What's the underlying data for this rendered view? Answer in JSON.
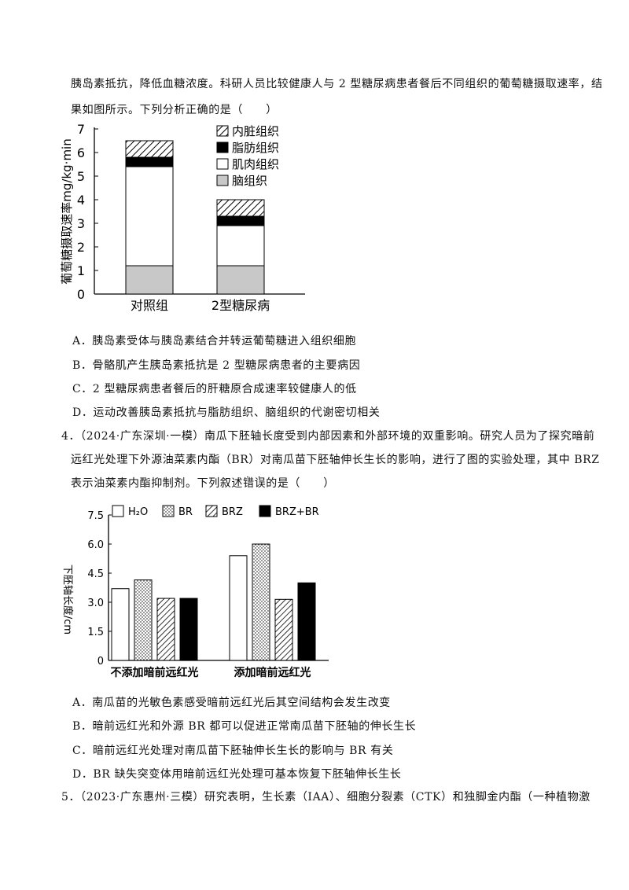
{
  "intro": {
    "line1": "胰岛素抵抗，降低血糖浓度。科研人员比较健康人与 2 型糖尿病患者餐后不同组织的葡萄糖摄取速率，结",
    "line2": "果如图所示。下列分析正确的是（　　）"
  },
  "q3_options": [
    "A．胰岛素受体与胰岛素结合并转运葡萄糖进入组织细胞",
    "B．骨骼肌产生胰岛素抵抗是 2 型糖尿病患者的主要病因",
    "C．2 型糖尿病患者餐后的肝糖原合成速率较健康人的低",
    "D．运动改善胰岛素抵抗与脂肪组织、脑组织的代谢密切相关"
  ],
  "q4": {
    "line1": "4．（2024·广东深圳·一模）南瓜下胚轴长度受到内部因素和外部环境的双重影响。研究人员为了探究暗前",
    "line2": "远红光处理下外源油菜素内酯（BR）对南瓜苗下胚轴伸长生长的影响，进行了图的实验处理，其中 BRZ",
    "line3_pre": "表示油菜素内酯抑制剂。下列叙述",
    "line3_emph1": "错",
    "line3_emph2": "误",
    "line3_post": "的是（　　）"
  },
  "q4_options": [
    "A．南瓜苗的光敏色素感受暗前远红光后其空间结构会发生改变",
    "B．暗前远红光和外源 BR 都可以促进正常南瓜苗下胚轴的伸长生长",
    "C．暗前远红光处理对南瓜苗下胚轴伸长生长的影响与 BR 有关",
    "D．BR 缺失突变体用暗前远红光处理可基本恢复下胚轴伸长生长"
  ],
  "q5": {
    "line1": "5．（2023·广东惠州·三模）研究表明，生长素（IAA）、细胞分裂素（CTK）和独脚金内酯（一种植物激"
  },
  "chart_data": [
    {
      "type": "bar",
      "stacked": true,
      "categories": [
        "对照组",
        "2型糖尿病"
      ],
      "ylabel": "葡萄糖摄取速率mg/kg·min",
      "ylim": [
        0,
        7
      ],
      "yticks": [
        "0",
        "1",
        "2",
        "3",
        "4",
        "5",
        "6",
        "7"
      ],
      "legend_position": "top-right",
      "series": [
        {
          "name": "脑组织",
          "values": [
            1.2,
            1.2
          ],
          "pattern": "gray",
          "color": "#c8c8c8"
        },
        {
          "name": "肌肉组织",
          "values": [
            4.2,
            1.7
          ],
          "pattern": "white",
          "color": "#ffffff"
        },
        {
          "name": "脂肪组织",
          "values": [
            0.4,
            0.4
          ],
          "pattern": "black",
          "color": "#000000"
        },
        {
          "name": "内脏组织",
          "values": [
            0.7,
            0.7
          ],
          "pattern": "hatch",
          "color": "#000000"
        }
      ]
    },
    {
      "type": "bar",
      "stacked": false,
      "categories": [
        "不添加暗前远红光",
        "添加暗前远红光"
      ],
      "ylabel": "下胚轴长度/cm",
      "ylim": [
        0,
        7.5
      ],
      "yticks": [
        "0",
        "1.5",
        "3.0",
        "4.5",
        "6.0",
        "7.5"
      ],
      "legend_position": "top",
      "series": [
        {
          "name": "H₂O",
          "values": [
            3.7,
            5.4
          ],
          "pattern": "white"
        },
        {
          "name": "BR",
          "values": [
            4.15,
            6.0
          ],
          "pattern": "dots"
        },
        {
          "name": "BRZ",
          "values": [
            3.2,
            3.15
          ],
          "pattern": "hatch"
        },
        {
          "name": "BRZ+BR",
          "values": [
            3.2,
            4.0
          ],
          "pattern": "black"
        }
      ]
    }
  ]
}
